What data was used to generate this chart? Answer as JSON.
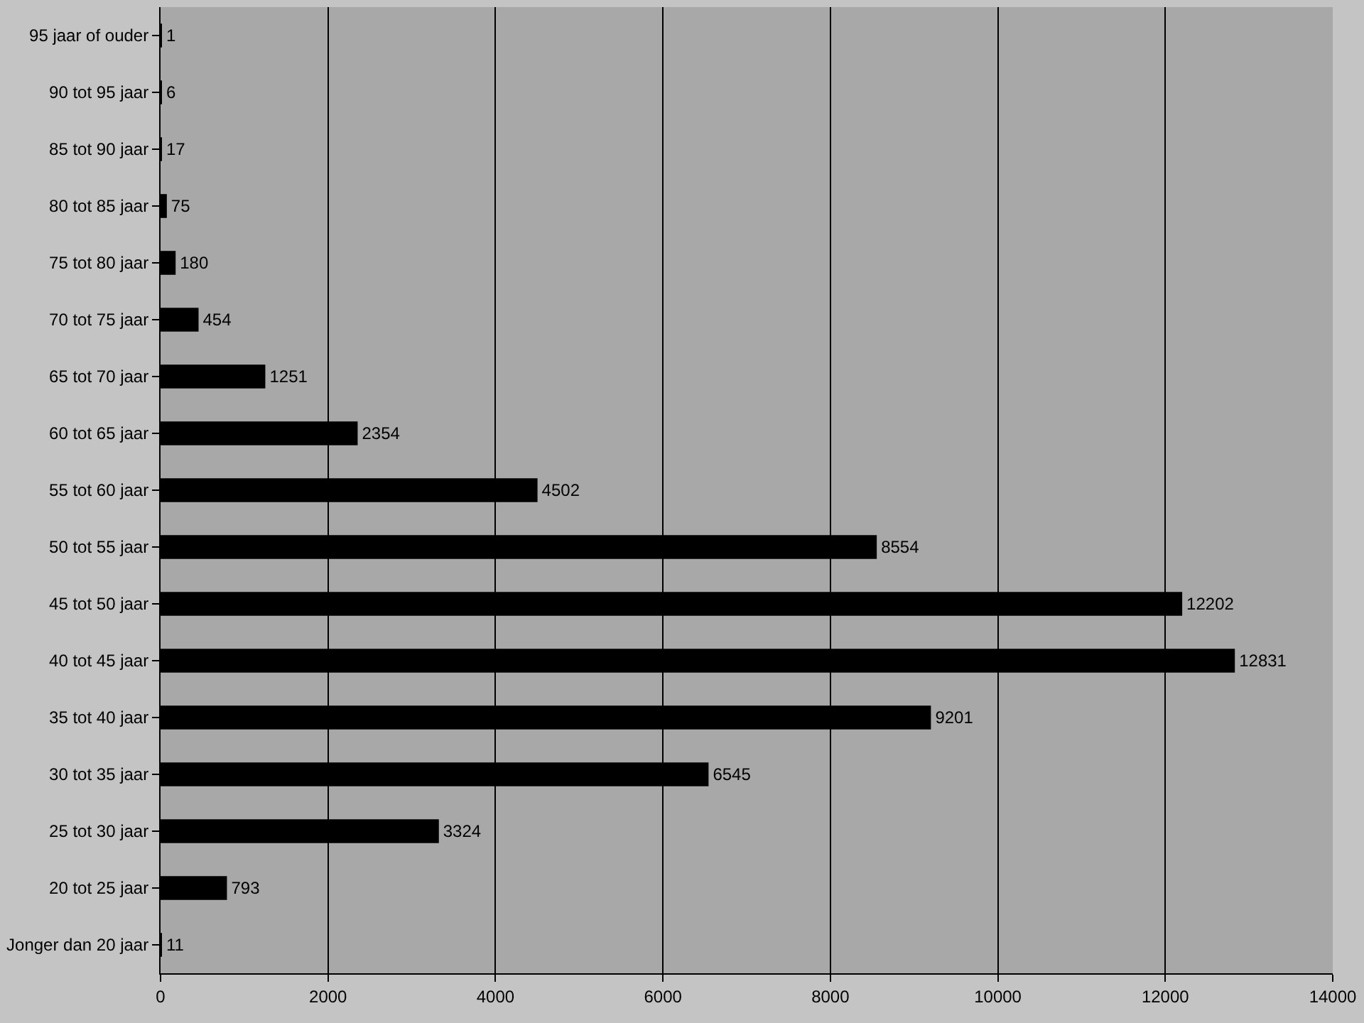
{
  "chart_data": {
    "type": "bar",
    "orientation": "horizontal",
    "categories": [
      "95 jaar of ouder",
      "90 tot 95 jaar",
      "85 tot 90 jaar",
      "80 tot 85 jaar",
      "75 tot 80 jaar",
      "70 tot 75 jaar",
      "65 tot 70 jaar",
      "60 tot 65 jaar",
      "55 tot 60 jaar",
      "50 tot 55 jaar",
      "45 tot 50 jaar",
      "40 tot 45 jaar",
      "35 tot 40 jaar",
      "30 tot 35 jaar",
      "25 tot 30 jaar",
      "20 tot 25 jaar",
      "Jonger dan 20 jaar"
    ],
    "values": [
      1,
      6,
      17,
      75,
      180,
      454,
      1251,
      2354,
      4502,
      8554,
      12202,
      12831,
      9201,
      6545,
      3324,
      793,
      11
    ],
    "color": "#000000",
    "xlim": [
      0,
      14000
    ],
    "xticks": [
      0,
      2000,
      4000,
      6000,
      8000,
      10000,
      12000,
      14000
    ],
    "grid": "x",
    "data_labels": true
  }
}
